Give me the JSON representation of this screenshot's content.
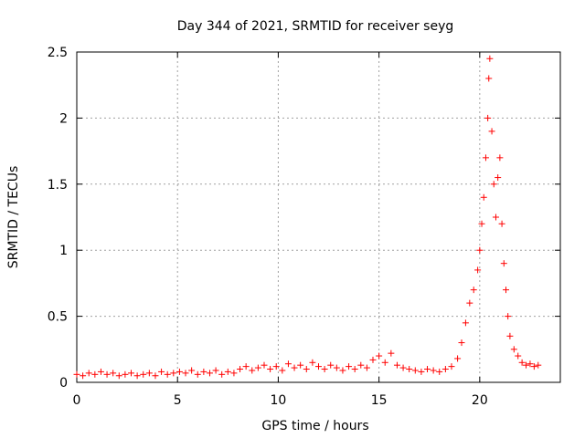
{
  "chart_data": {
    "type": "scatter",
    "title": "Day 344 of 2021, SRMTID for receiver seyg",
    "xlabel": "GPS time / hours",
    "ylabel": "SRMTID / TECUs",
    "xlim": [
      0,
      24
    ],
    "ylim": [
      0,
      2.5
    ],
    "xticks": [
      0,
      5,
      10,
      15,
      20
    ],
    "xtick_labels": [
      "0",
      "5",
      "10",
      "15",
      "20"
    ],
    "yticks": [
      0,
      0.5,
      1,
      1.5,
      2,
      2.5
    ],
    "ytick_labels": [
      "0",
      "0.5",
      "1",
      "1.5",
      "2",
      "2.5"
    ],
    "grid": true,
    "marker": "+",
    "color": "#ff0000",
    "series": [
      {
        "name": "SRMTID",
        "x": [
          0.0,
          0.3,
          0.6,
          0.9,
          1.2,
          1.5,
          1.8,
          2.1,
          2.4,
          2.7,
          3.0,
          3.3,
          3.6,
          3.9,
          4.2,
          4.5,
          4.8,
          5.1,
          5.4,
          5.7,
          6.0,
          6.3,
          6.6,
          6.9,
          7.2,
          7.5,
          7.8,
          8.1,
          8.4,
          8.7,
          9.0,
          9.3,
          9.6,
          9.9,
          10.2,
          10.5,
          10.8,
          11.1,
          11.4,
          11.7,
          12.0,
          12.3,
          12.6,
          12.9,
          13.2,
          13.5,
          13.8,
          14.1,
          14.4,
          14.7,
          15.0,
          15.3,
          15.6,
          15.9,
          16.2,
          16.5,
          16.8,
          17.1,
          17.4,
          17.7,
          18.0,
          18.3,
          18.6,
          18.9,
          19.1,
          19.3,
          19.5,
          19.7,
          19.9,
          20.0,
          20.1,
          20.2,
          20.3,
          20.4,
          20.45,
          20.5,
          20.6,
          20.7,
          20.8,
          20.9,
          21.0,
          21.1,
          21.2,
          21.3,
          21.4,
          21.5,
          21.7,
          21.9,
          22.1,
          22.3,
          22.5,
          22.7,
          22.9
        ],
        "y": [
          0.06,
          0.05,
          0.07,
          0.06,
          0.08,
          0.06,
          0.07,
          0.05,
          0.06,
          0.07,
          0.05,
          0.06,
          0.07,
          0.05,
          0.08,
          0.06,
          0.07,
          0.08,
          0.07,
          0.09,
          0.06,
          0.08,
          0.07,
          0.09,
          0.06,
          0.08,
          0.07,
          0.1,
          0.12,
          0.09,
          0.11,
          0.13,
          0.1,
          0.12,
          0.09,
          0.14,
          0.11,
          0.13,
          0.1,
          0.15,
          0.12,
          0.1,
          0.13,
          0.11,
          0.09,
          0.12,
          0.1,
          0.13,
          0.11,
          0.17,
          0.2,
          0.15,
          0.22,
          0.13,
          0.11,
          0.1,
          0.09,
          0.08,
          0.1,
          0.09,
          0.08,
          0.1,
          0.12,
          0.18,
          0.3,
          0.45,
          0.6,
          0.7,
          0.85,
          1.0,
          1.2,
          1.4,
          1.7,
          2.0,
          2.3,
          2.45,
          1.9,
          1.5,
          1.25,
          1.55,
          1.7,
          1.2,
          0.9,
          0.7,
          0.5,
          0.35,
          0.25,
          0.2,
          0.15,
          0.13,
          0.14,
          0.12,
          0.13
        ]
      }
    ]
  }
}
